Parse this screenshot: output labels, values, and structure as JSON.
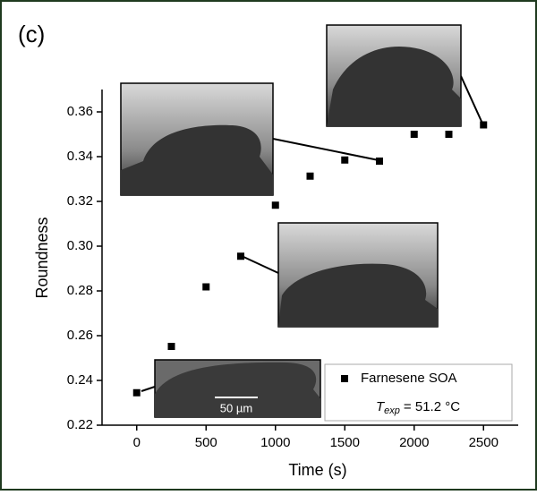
{
  "chart_data": {
    "type": "scatter",
    "panel_label": "(c)",
    "x_label": "Time (s)",
    "y_label": "Roundness",
    "x": [
      0,
      250,
      500,
      750,
      1000,
      1250,
      1500,
      1750,
      2000,
      2250,
      2500
    ],
    "series": [
      {
        "name": "Farnesene SOA",
        "color": "#000000",
        "values": [
          0.2345,
          0.2552,
          0.2818,
          0.2955,
          0.3183,
          0.3313,
          0.3385,
          0.338,
          0.35,
          0.35,
          0.3542
        ]
      }
    ],
    "xlim": [
      -250,
      2750
    ],
    "ylim": [
      0.22,
      0.37
    ],
    "xticks": [
      0,
      500,
      1000,
      1500,
      2000,
      2500
    ],
    "yticks": [
      0.22,
      0.24,
      0.26,
      0.28,
      {
        "value": 0.3,
        "label": "0.30"
      },
      0.32,
      0.34,
      0.36
    ],
    "legend": "lower right",
    "annotation": {
      "symbol": "T",
      "subscript": "exp",
      "text": "=  51.2 °C"
    },
    "scale_bar": "50 µm"
  }
}
